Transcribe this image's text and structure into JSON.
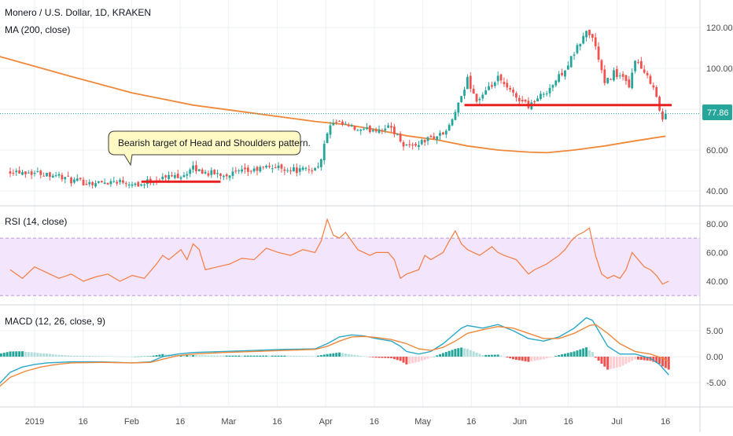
{
  "colors": {
    "up": "#26a69a",
    "down": "#ef5350",
    "ma": "#f0883a",
    "rsi": "#f57c42",
    "rsi_band": "#f3e5fb",
    "rsi_band_line": "#b79ad6",
    "grid": "#eef1f5",
    "divider": "#d1d4dc",
    "axis_text": "#4a4a4a",
    "target_line": "#e8201f",
    "price_label_bg": "#26a69a",
    "price_line": "#26a69a",
    "macd_line": "#2aa7c9",
    "signal_line": "#f0883a",
    "callout_bg": "#fff9c4",
    "callout_border": "#3c3c3c"
  },
  "header": {
    "title": "Monero / U.S. Dollar, 1D, KRAKEN",
    "ma_label": "MA (200, close)"
  },
  "rsi_label": "RSI (14, close)",
  "macd_label": "MACD (12, 26, close, 9)",
  "last_price_label": "77.86",
  "annotation": "Bearish target of Head and Shoulders pattern.",
  "chart_data": [
    {
      "type": "candlestick",
      "title": "Monero / U.S. Dollar, 1D, KRAKEN",
      "x_ticks": [
        "2019",
        "16",
        "Feb",
        "16",
        "Mar",
        "16",
        "Apr",
        "16",
        "May",
        "16",
        "Jun",
        "16",
        "Jul",
        "16"
      ],
      "y_ticks": [
        "40.00",
        "60.00",
        "80.00",
        "100.00",
        "120.00"
      ],
      "ylim": [
        34,
        124
      ],
      "grid": true,
      "last_price": 77.86,
      "close_anchors": [
        [
          0,
          50
        ],
        [
          8,
          49
        ],
        [
          15,
          48
        ],
        [
          20,
          45
        ],
        [
          25,
          44
        ],
        [
          30,
          44
        ],
        [
          35,
          45
        ],
        [
          40,
          44
        ],
        [
          43,
          43
        ],
        [
          46,
          45
        ],
        [
          52,
          47
        ],
        [
          57,
          48
        ],
        [
          60,
          51
        ],
        [
          64,
          49
        ],
        [
          70,
          48
        ],
        [
          80,
          50
        ],
        [
          85,
          52
        ],
        [
          90,
          51
        ],
        [
          95,
          50
        ],
        [
          100,
          51
        ],
        [
          102,
          55
        ],
        [
          104,
          69
        ],
        [
          106,
          73
        ],
        [
          110,
          72
        ],
        [
          115,
          69
        ],
        [
          118,
          70
        ],
        [
          125,
          71
        ],
        [
          129,
          63
        ],
        [
          132,
          62
        ],
        [
          138,
          66
        ],
        [
          142,
          68
        ],
        [
          144,
          71
        ],
        [
          146,
          79
        ],
        [
          148,
          85
        ],
        [
          150,
          95
        ],
        [
          153,
          84
        ],
        [
          156,
          88
        ],
        [
          160,
          95
        ],
        [
          163,
          90
        ],
        [
          166,
          86
        ],
        [
          170,
          82
        ],
        [
          173,
          85
        ],
        [
          178,
          92
        ],
        [
          183,
          102
        ],
        [
          186,
          110
        ],
        [
          189,
          118
        ],
        [
          191,
          115
        ],
        [
          193,
          105
        ],
        [
          195,
          92
        ],
        [
          198,
          98
        ],
        [
          201,
          95
        ],
        [
          203,
          90
        ],
        [
          205,
          105
        ],
        [
          208,
          97
        ],
        [
          211,
          92
        ],
        [
          213,
          79
        ],
        [
          214,
          75
        ],
        [
          215,
          77.86
        ]
      ],
      "series": [
        {
          "name": "MA (200, close)",
          "points": [
            [
              -4,
              106
            ],
            [
              20,
              96
            ],
            [
              40,
              88
            ],
            [
              60,
              82
            ],
            [
              80,
              78
            ],
            [
              100,
              74
            ],
            [
              110,
              72.5
            ],
            [
              120,
              70
            ],
            [
              130,
              67
            ],
            [
              140,
              65
            ],
            [
              150,
              62
            ],
            [
              160,
              60
            ],
            [
              170,
              59
            ],
            [
              176,
              58.7
            ],
            [
              185,
              60
            ],
            [
              195,
              62
            ],
            [
              205,
              64.5
            ],
            [
              215,
              66.8
            ]
          ]
        }
      ],
      "annotations": [
        {
          "type": "horizontal_segment",
          "x": [
            43,
            69
          ],
          "y": 44.5
        },
        {
          "type": "horizontal_segment",
          "x": [
            149,
            217
          ],
          "y": 82
        },
        {
          "type": "callout",
          "text": "Bearish target of Head and Shoulders pattern."
        }
      ]
    },
    {
      "type": "line",
      "title": "RSI (14, close)",
      "y_ticks": [
        "40.00",
        "60.00",
        "80.00"
      ],
      "ylim": [
        26,
        86
      ],
      "band": [
        30,
        70
      ],
      "series": [
        {
          "name": "RSI (14, close)",
          "points": [
            [
              0,
              48
            ],
            [
              4,
              42
            ],
            [
              8,
              50
            ],
            [
              12,
              46
            ],
            [
              16,
              42
            ],
            [
              20,
              45
            ],
            [
              24,
              40
            ],
            [
              28,
              43
            ],
            [
              32,
              45
            ],
            [
              36,
              40
            ],
            [
              40,
              44
            ],
            [
              44,
              42
            ],
            [
              48,
              52
            ],
            [
              50,
              58
            ],
            [
              52,
              55
            ],
            [
              56,
              62
            ],
            [
              58,
              55
            ],
            [
              60,
              66
            ],
            [
              62,
              62
            ],
            [
              64,
              48
            ],
            [
              68,
              50
            ],
            [
              72,
              52
            ],
            [
              76,
              56
            ],
            [
              80,
              55
            ],
            [
              84,
              63
            ],
            [
              88,
              60
            ],
            [
              92,
              58
            ],
            [
              96,
              62
            ],
            [
              100,
              60
            ],
            [
              102,
              68
            ],
            [
              104,
              83
            ],
            [
              106,
              72
            ],
            [
              108,
              70
            ],
            [
              110,
              74
            ],
            [
              112,
              68
            ],
            [
              114,
              62
            ],
            [
              116,
              60
            ],
            [
              118,
              58
            ],
            [
              120,
              60
            ],
            [
              124,
              60
            ],
            [
              126,
              55
            ],
            [
              128,
              42
            ],
            [
              130,
              45
            ],
            [
              134,
              48
            ],
            [
              136,
              58
            ],
            [
              138,
              55
            ],
            [
              142,
              60
            ],
            [
              144,
              68
            ],
            [
              146,
              75
            ],
            [
              148,
              66
            ],
            [
              150,
              62
            ],
            [
              152,
              60
            ],
            [
              154,
              58
            ],
            [
              158,
              64
            ],
            [
              160,
              60
            ],
            [
              162,
              58
            ],
            [
              166,
              55
            ],
            [
              168,
              50
            ],
            [
              170,
              45
            ],
            [
              172,
              48
            ],
            [
              176,
              52
            ],
            [
              180,
              58
            ],
            [
              182,
              62
            ],
            [
              184,
              68
            ],
            [
              186,
              72
            ],
            [
              188,
              74
            ],
            [
              190,
              77
            ],
            [
              192,
              58
            ],
            [
              194,
              45
            ],
            [
              196,
              42
            ],
            [
              198,
              44
            ],
            [
              200,
              42
            ],
            [
              202,
              48
            ],
            [
              204,
              60
            ],
            [
              206,
              55
            ],
            [
              208,
              50
            ],
            [
              210,
              48
            ],
            [
              212,
              44
            ],
            [
              214,
              38
            ],
            [
              216,
              40
            ]
          ]
        }
      ]
    },
    {
      "type": "line+bar",
      "title": "MACD (12, 26, close, 9)",
      "y_ticks": [
        "5.00",
        "0.00",
        "-5.00"
      ],
      "ylim": [
        -8.5,
        9
      ],
      "series": [
        {
          "name": "MACD",
          "points": [
            [
              -4,
              -5.5
            ],
            [
              0,
              -3
            ],
            [
              4,
              -2
            ],
            [
              8,
              -1.5
            ],
            [
              12,
              -1.2
            ],
            [
              20,
              -1
            ],
            [
              30,
              -1
            ],
            [
              40,
              -1.2
            ],
            [
              46,
              -1
            ],
            [
              50,
              0
            ],
            [
              55,
              0.5
            ],
            [
              60,
              0.8
            ],
            [
              65,
              0.9
            ],
            [
              70,
              1
            ],
            [
              80,
              1.2
            ],
            [
              90,
              1.4
            ],
            [
              100,
              1.5
            ],
            [
              104,
              2.5
            ],
            [
              108,
              3.8
            ],
            [
              112,
              4.2
            ],
            [
              116,
              4
            ],
            [
              120,
              3.5
            ],
            [
              125,
              3
            ],
            [
              128,
              2
            ],
            [
              130,
              1
            ],
            [
              134,
              0.5
            ],
            [
              138,
              1
            ],
            [
              142,
              2.5
            ],
            [
              145,
              4
            ],
            [
              148,
              5.5
            ],
            [
              150,
              6
            ],
            [
              155,
              5.5
            ],
            [
              160,
              6.2
            ],
            [
              165,
              5
            ],
            [
              170,
              3.5
            ],
            [
              175,
              3
            ],
            [
              180,
              3.8
            ],
            [
              185,
              5.5
            ],
            [
              189,
              7.5
            ],
            [
              191,
              7
            ],
            [
              193,
              5
            ],
            [
              196,
              2
            ],
            [
              200,
              0.5
            ],
            [
              205,
              0.5
            ],
            [
              210,
              -0.3
            ],
            [
              213,
              -1.5
            ],
            [
              216,
              -3.5
            ]
          ]
        },
        {
          "name": "Signal",
          "points": [
            [
              -4,
              -6
            ],
            [
              0,
              -4
            ],
            [
              5,
              -2.8
            ],
            [
              10,
              -2
            ],
            [
              15,
              -1.5
            ],
            [
              20,
              -1.2
            ],
            [
              30,
              -1.1
            ],
            [
              40,
              -1.2
            ],
            [
              46,
              -1.1
            ],
            [
              50,
              -0.5
            ],
            [
              55,
              0.2
            ],
            [
              60,
              0.5
            ],
            [
              70,
              0.8
            ],
            [
              80,
              1
            ],
            [
              90,
              1.2
            ],
            [
              100,
              1.4
            ],
            [
              104,
              2
            ],
            [
              108,
              3
            ],
            [
              112,
              3.8
            ],
            [
              116,
              3.9
            ],
            [
              120,
              3.7
            ],
            [
              125,
              3.3
            ],
            [
              130,
              2.5
            ],
            [
              134,
              1.5
            ],
            [
              138,
              1.2
            ],
            [
              142,
              1.8
            ],
            [
              146,
              3
            ],
            [
              150,
              4.5
            ],
            [
              155,
              5.2
            ],
            [
              160,
              5.8
            ],
            [
              165,
              5.5
            ],
            [
              170,
              4.5
            ],
            [
              175,
              3.5
            ],
            [
              180,
              3.5
            ],
            [
              185,
              4.5
            ],
            [
              190,
              6
            ],
            [
              192,
              6.2
            ],
            [
              196,
              4.5
            ],
            [
              200,
              2.5
            ],
            [
              205,
              1
            ],
            [
              210,
              0.5
            ],
            [
              214,
              -0.3
            ],
            [
              216,
              -1
            ]
          ]
        }
      ]
    }
  ]
}
